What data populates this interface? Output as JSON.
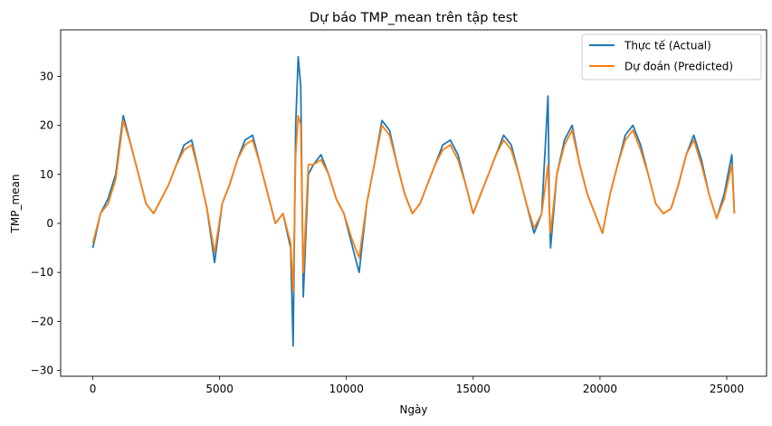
{
  "chart_data": {
    "type": "line",
    "title": "Dự báo TMP_mean trên tập test",
    "xlabel": "Ngày",
    "ylabel": "TMP_mean",
    "xlim": [
      -1270,
      26570
    ],
    "ylim": [
      -31.2,
      39.5
    ],
    "x_ticks": [
      0,
      5000,
      10000,
      15000,
      20000,
      25000
    ],
    "y_ticks": [
      -30,
      -20,
      -10,
      0,
      10,
      20,
      30
    ],
    "x_tick_labels": [
      "0",
      "5000",
      "10000",
      "15000",
      "20000",
      "25000"
    ],
    "y_tick_labels": [
      "−30",
      "−20",
      "−10",
      "0",
      "10",
      "20",
      "30"
    ],
    "grid": false,
    "legend_position": "top-right",
    "series": [
      {
        "name": "Thực tế (Actual)",
        "color": "#1f77b4",
        "x": [
          0,
          300,
          600,
          900,
          1200,
          1500,
          1800,
          2100,
          2400,
          2700,
          3000,
          3300,
          3600,
          3900,
          4200,
          4500,
          4800,
          5100,
          5400,
          5700,
          6000,
          6300,
          6600,
          6900,
          7200,
          7500,
          7800,
          7900,
          8000,
          8100,
          8200,
          8300,
          8500,
          8700,
          9000,
          9300,
          9600,
          9900,
          10200,
          10500,
          10800,
          11100,
          11400,
          11700,
          12000,
          12300,
          12600,
          12900,
          13200,
          13500,
          13800,
          14100,
          14400,
          14700,
          15000,
          15300,
          15600,
          15900,
          16200,
          16500,
          16800,
          17100,
          17400,
          17700,
          17950,
          18000,
          18050,
          18300,
          18600,
          18900,
          19200,
          19500,
          19800,
          20100,
          20400,
          20700,
          21000,
          21300,
          21600,
          21900,
          22200,
          22500,
          22800,
          23100,
          23400,
          23700,
          24000,
          24300,
          24600,
          24900,
          25200,
          25300
        ],
        "values": [
          -5,
          2,
          5,
          10,
          22,
          16,
          10,
          4,
          2,
          5,
          8,
          12,
          16,
          17,
          10,
          3,
          -8,
          4,
          8,
          13,
          17,
          18,
          12,
          6,
          0,
          2,
          -5,
          -25,
          20,
          34,
          28,
          -15,
          10,
          12,
          14,
          10,
          5,
          2,
          -4,
          -10,
          4,
          12,
          21,
          19,
          12,
          6,
          2,
          4,
          8,
          12,
          16,
          17,
          14,
          8,
          2,
          6,
          10,
          14,
          18,
          16,
          10,
          4,
          -2,
          2,
          26,
          4,
          -5,
          10,
          17,
          20,
          12,
          6,
          2,
          -2,
          6,
          12,
          18,
          20,
          16,
          10,
          4,
          2,
          3,
          8,
          14,
          18,
          13,
          6,
          1,
          6,
          14,
          2
        ]
      },
      {
        "name": "Dự đoán (Predicted)",
        "color": "#ff7f0e",
        "x": [
          0,
          300,
          600,
          900,
          1200,
          1500,
          1800,
          2100,
          2400,
          2700,
          3000,
          3300,
          3600,
          3900,
          4200,
          4500,
          4800,
          5100,
          5400,
          5700,
          6000,
          6300,
          6600,
          6900,
          7200,
          7500,
          7800,
          7900,
          8000,
          8100,
          8200,
          8300,
          8500,
          8700,
          9000,
          9300,
          9600,
          9900,
          10200,
          10500,
          10800,
          11100,
          11400,
          11700,
          12000,
          12300,
          12600,
          12900,
          13200,
          13500,
          13800,
          14100,
          14400,
          14700,
          15000,
          15300,
          15600,
          15900,
          16200,
          16500,
          16800,
          17100,
          17400,
          17700,
          17950,
          18000,
          18050,
          18300,
          18600,
          18900,
          19200,
          19500,
          19800,
          20100,
          20400,
          20700,
          21000,
          21300,
          21600,
          21900,
          22200,
          22500,
          22800,
          23100,
          23400,
          23700,
          24000,
          24300,
          24600,
          24900,
          25200,
          25300
        ],
        "values": [
          -4,
          2,
          4,
          9,
          21,
          16,
          10,
          4,
          2,
          5,
          8,
          12,
          15,
          16,
          10,
          3,
          -6,
          4,
          8,
          13,
          16,
          17,
          12,
          6,
          0,
          2,
          -4,
          -14,
          14,
          22,
          20,
          -10,
          12,
          12,
          13,
          10,
          5,
          2,
          -3,
          -7,
          4,
          12,
          20,
          18,
          12,
          6,
          2,
          4,
          8,
          12,
          15,
          16,
          13,
          8,
          2,
          6,
          10,
          14,
          17,
          15,
          10,
          4,
          -1,
          2,
          12,
          3,
          -2,
          10,
          16,
          19,
          12,
          6,
          2,
          -2,
          6,
          12,
          17,
          19,
          15,
          10,
          4,
          2,
          3,
          8,
          14,
          17,
          12,
          6,
          1,
          5,
          12,
          2
        ]
      }
    ]
  }
}
